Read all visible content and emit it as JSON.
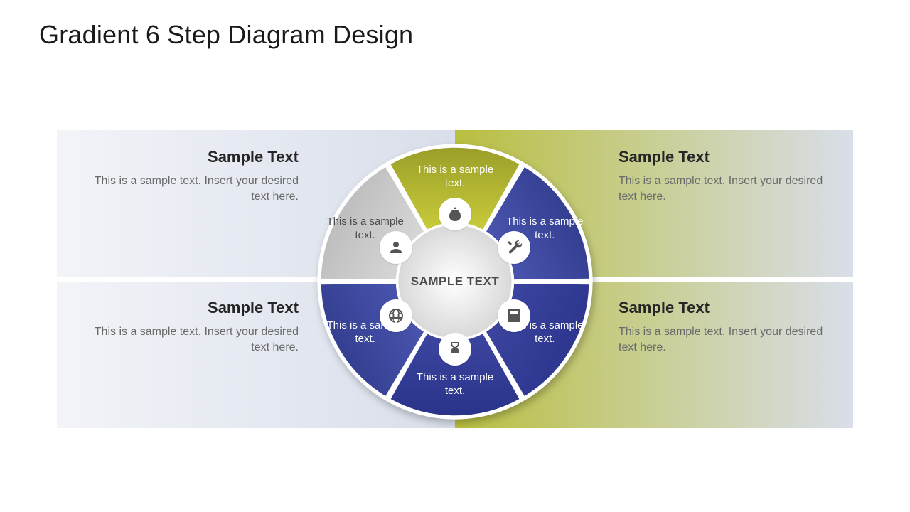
{
  "title": "Gradient 6 Step Diagram Design",
  "center_text": "SAMPLE TEXT",
  "background": "#ffffff",
  "bar": {
    "top_left_gradient": [
      "#d9deea",
      "#f2f4f8"
    ],
    "top_right_gradient": [
      "#b9bf3f",
      "#d9deea"
    ],
    "bot_left_gradient": [
      "#d9deea",
      "#f2f4f8"
    ],
    "bot_right_gradient": [
      "#b9bf3f",
      "#d9deea"
    ]
  },
  "panels": {
    "tl": {
      "title": "Sample Text",
      "body": "This is a sample text. Insert your desired text here."
    },
    "bl": {
      "title": "Sample Text",
      "body": "This is a sample text. Insert your desired text here."
    },
    "tr": {
      "title": "Sample Text",
      "body": "This is a sample text. Insert your desired text here."
    },
    "br": {
      "title": "Sample Text",
      "body": "This is a sample text. Insert your desired text here."
    }
  },
  "wheel": {
    "radius_outer": 215,
    "radius_inner": 92,
    "gap_deg": 1.5,
    "ring_stroke": "#ffffff",
    "ring_stroke_width": 4,
    "center_fill_gradient": [
      "#ffffff",
      "#d8d8d8"
    ],
    "segments": [
      {
        "label": "This is a sample text.",
        "grad": [
          "#c9cc3a",
          "#9a9e28"
        ],
        "label_color": "light",
        "icon": "money-bag"
      },
      {
        "label": "This is a sample text.",
        "grad": [
          "#4a56b0",
          "#2f3a8a"
        ],
        "label_color": "light",
        "icon": "tools"
      },
      {
        "label": "This is a sample text.",
        "grad": [
          "#3c46a0",
          "#2a338a"
        ],
        "label_color": "light",
        "icon": "calculator"
      },
      {
        "label": "This is a sample text.",
        "grad": [
          "#3c46a0",
          "#2a338a"
        ],
        "label_color": "light",
        "icon": "hourglass"
      },
      {
        "label": "This is a sample text.",
        "grad": [
          "#4a56b0",
          "#2f3a8a"
        ],
        "label_color": "light",
        "icon": "globe"
      },
      {
        "label": "This is a sample text.",
        "grad": [
          "#d8d8d8",
          "#b8b8b8"
        ],
        "label_color": "dark",
        "icon": "user"
      }
    ],
    "icon_ring_radius": 108,
    "label_ring_radius": 165
  },
  "typography": {
    "title_fontsize": 36,
    "panel_title_fontsize": 22,
    "panel_body_fontsize": 16,
    "segment_label_fontsize": 15,
    "center_fontsize": 17,
    "icon_color": "#555555",
    "panel_body_color": "#6a6a6a"
  }
}
